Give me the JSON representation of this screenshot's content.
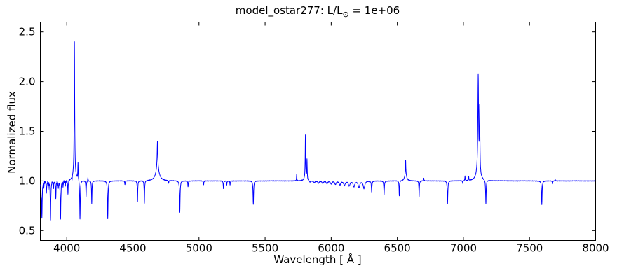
{
  "chart_data": {
    "type": "line",
    "title": "model_ostar277: L/L⊙ = 1e+06",
    "title_parts": {
      "pre": "model_ostar277: L/L",
      "sub": "⊙",
      "post": " = 1e+06"
    },
    "xlabel": "Wavelength [ Å ]",
    "ylabel": "Normalized flux",
    "xlim": [
      3800,
      8000
    ],
    "ylim": [
      0.4,
      2.6
    ],
    "xticks": [
      4000,
      4500,
      5000,
      5500,
      6000,
      6500,
      7000,
      7500,
      8000
    ],
    "yticks": [
      0.5,
      1.0,
      1.5,
      2.0,
      2.5
    ],
    "grid": false,
    "legend": null,
    "line_color": "#0000ff",
    "axis_color": "#000000",
    "background_color": "#ffffff",
    "continuum_flux": 1.0,
    "x_start": 3801,
    "x_end": 8000,
    "emission_features": [
      {
        "center": 4058,
        "peak_flux": 2.4,
        "amp": 1.32,
        "core_width": 2.2,
        "wing_amp": 0.08,
        "wing_width": 14
      },
      {
        "center": 4085,
        "peak_flux": 1.17,
        "amp": 0.17,
        "core_width": 1.8,
        "wing_amp": 0,
        "wing_width": 0
      },
      {
        "center": 4160,
        "peak_flux": 1.04,
        "amp": 0.04,
        "core_width": 1.5,
        "wing_amp": 0,
        "wing_width": 0
      },
      {
        "center": 4686,
        "peak_flux": 1.4,
        "amp": 0.28,
        "core_width": 3.0,
        "wing_amp": 0.12,
        "wing_width": 16
      },
      {
        "center": 5739,
        "peak_flux": 1.07,
        "amp": 0.07,
        "core_width": 1.5,
        "wing_amp": 0,
        "wing_width": 0
      },
      {
        "center": 5805,
        "peak_flux": 1.46,
        "amp": 0.42,
        "core_width": 1.8,
        "wing_amp": 0.04,
        "wing_width": 9
      },
      {
        "center": 5817,
        "peak_flux": 1.22,
        "amp": 0.2,
        "core_width": 1.8,
        "wing_amp": 0,
        "wing_width": 0
      },
      {
        "center": 6563,
        "peak_flux": 1.21,
        "amp": 0.13,
        "core_width": 1.5,
        "wing_amp": 0.08,
        "wing_width": 8
      },
      {
        "center": 6700,
        "peak_flux": 1.03,
        "amp": 0.03,
        "core_width": 2.0,
        "wing_amp": 0,
        "wing_width": 0
      },
      {
        "center": 7012,
        "peak_flux": 1.05,
        "amp": 0.05,
        "core_width": 1.5,
        "wing_amp": 0,
        "wing_width": 0
      },
      {
        "center": 7040,
        "peak_flux": 1.04,
        "amp": 0.04,
        "core_width": 1.5,
        "wing_amp": 0,
        "wing_width": 0
      },
      {
        "center": 7112,
        "peak_flux": 2.08,
        "amp": 0.93,
        "core_width": 3.2,
        "wing_amp": 0.12,
        "wing_width": 14
      },
      {
        "center": 7123,
        "peak_flux": 1.77,
        "amp": 0.625,
        "core_width": 2.2,
        "wing_amp": 0,
        "wing_width": 0
      },
      {
        "center": 7694,
        "peak_flux": 1.02,
        "amp": 0.02,
        "core_width": 1.5,
        "wing_amp": 0,
        "wing_width": 0
      }
    ],
    "absorption_features": [
      {
        "center": 3807,
        "min_flux": 0.9,
        "width": 2.0
      },
      {
        "center": 3812,
        "min_flux": 0.64,
        "width": 2.5
      },
      {
        "center": 3826,
        "min_flux": 0.94,
        "width": 2.0
      },
      {
        "center": 3846,
        "min_flux": 0.87,
        "width": 2.0
      },
      {
        "center": 3860,
        "min_flux": 0.93,
        "width": 2.0
      },
      {
        "center": 3877,
        "min_flux": 0.62,
        "width": 2.5
      },
      {
        "center": 3900,
        "min_flux": 0.94,
        "width": 2.0
      },
      {
        "center": 3917,
        "min_flux": 0.82,
        "width": 2.0
      },
      {
        "center": 3936,
        "min_flux": 0.93,
        "width": 2.0
      },
      {
        "center": 3953,
        "min_flux": 0.61,
        "width": 2.5
      },
      {
        "center": 3972,
        "min_flux": 0.95,
        "width": 2.0
      },
      {
        "center": 3990,
        "min_flux": 0.96,
        "width": 2.0
      },
      {
        "center": 4009,
        "min_flux": 0.86,
        "width": 2.0
      },
      {
        "center": 4040,
        "min_flux": 0.96,
        "width": 1.5
      },
      {
        "center": 4100,
        "min_flux": 0.6,
        "width": 2.5
      },
      {
        "center": 4146,
        "min_flux": 0.84,
        "width": 2.0
      },
      {
        "center": 4189,
        "min_flux": 0.77,
        "width": 2.0
      },
      {
        "center": 4310,
        "min_flux": 0.62,
        "width": 2.5
      },
      {
        "center": 4440,
        "min_flux": 0.96,
        "width": 2.0
      },
      {
        "center": 4535,
        "min_flux": 0.79,
        "width": 2.0
      },
      {
        "center": 4587,
        "min_flux": 0.77,
        "width": 2.0
      },
      {
        "center": 4770,
        "min_flux": 0.97,
        "width": 2.0
      },
      {
        "center": 4855,
        "min_flux": 0.68,
        "width": 2.5
      },
      {
        "center": 4917,
        "min_flux": 0.94,
        "width": 2.0
      },
      {
        "center": 5035,
        "min_flux": 0.96,
        "width": 2.0
      },
      {
        "center": 5185,
        "min_flux": 0.92,
        "width": 2.0
      },
      {
        "center": 5210,
        "min_flux": 0.96,
        "width": 2.0
      },
      {
        "center": 5235,
        "min_flux": 0.96,
        "width": 2.0
      },
      {
        "center": 5411,
        "min_flux": 0.76,
        "width": 2.5
      },
      {
        "center": 5840,
        "min_flux": 0.985,
        "width": 6.0
      },
      {
        "center": 5872,
        "min_flux": 0.982,
        "width": 6.0
      },
      {
        "center": 5904,
        "min_flux": 0.979,
        "width": 6.0
      },
      {
        "center": 5936,
        "min_flux": 0.976,
        "width": 6.0
      },
      {
        "center": 5968,
        "min_flux": 0.973,
        "width": 6.0
      },
      {
        "center": 6000,
        "min_flux": 0.97,
        "width": 6.0
      },
      {
        "center": 6032,
        "min_flux": 0.966,
        "width": 6.0
      },
      {
        "center": 6066,
        "min_flux": 0.962,
        "width": 7.0
      },
      {
        "center": 6100,
        "min_flux": 0.957,
        "width": 7.0
      },
      {
        "center": 6136,
        "min_flux": 0.951,
        "width": 7.0
      },
      {
        "center": 6172,
        "min_flux": 0.944,
        "width": 7.0
      },
      {
        "center": 6210,
        "min_flux": 0.935,
        "width": 7.0
      },
      {
        "center": 6248,
        "min_flux": 0.925,
        "width": 7.0
      },
      {
        "center": 6306,
        "min_flux": 0.89,
        "width": 2.5
      },
      {
        "center": 6400,
        "min_flux": 0.86,
        "width": 2.5
      },
      {
        "center": 6515,
        "min_flux": 0.85,
        "width": 2.0
      },
      {
        "center": 6665,
        "min_flux": 0.84,
        "width": 2.0
      },
      {
        "center": 6880,
        "min_flux": 0.77,
        "width": 2.5
      },
      {
        "center": 6995,
        "min_flux": 0.97,
        "width": 2.0
      },
      {
        "center": 7170,
        "min_flux": 0.76,
        "width": 2.5
      },
      {
        "center": 7593,
        "min_flux": 0.76,
        "width": 2.5
      },
      {
        "center": 7674,
        "min_flux": 0.97,
        "width": 2.0
      }
    ],
    "noise_regions": [
      {
        "from": 3801,
        "to": 4020,
        "amplitude": 0.013
      },
      {
        "from": 4020,
        "to": 8000,
        "amplitude": 0.003
      }
    ]
  }
}
